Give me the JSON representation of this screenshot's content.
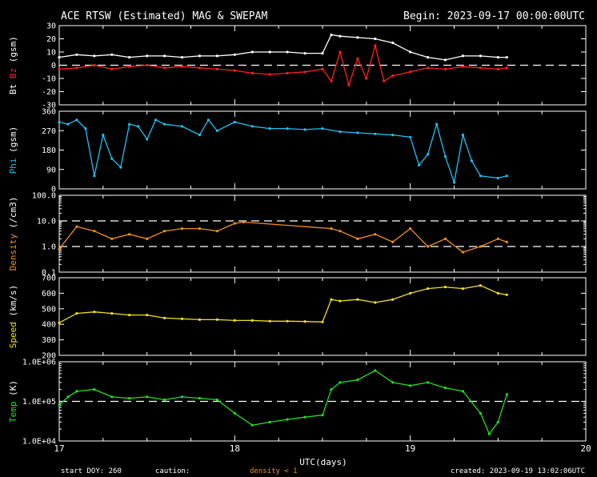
{
  "chart_data": {
    "type": "scatter",
    "title": "ACE RTSW (Estimated) MAG & SWEPAM",
    "begin": "Begin: 2023-09-17 00:00:00UTC",
    "xlabel": "UTC(days)",
    "xticks": [
      "17",
      "18",
      "19",
      "20"
    ],
    "xlim": [
      17,
      20
    ],
    "footer": {
      "start_doy": "start DOY: 260",
      "caution": "caution:",
      "density_note": "density < 1",
      "created": "created: 2023-09-19 13:02:06UTC"
    },
    "panels": [
      {
        "id": "mag",
        "ylabels": [
          {
            "text": "Bt",
            "color": "#ffffff"
          },
          {
            "text": "Bz",
            "color": "#ff2020"
          },
          {
            "text": "(gsm)",
            "color": "#ffffff"
          }
        ],
        "ylim": [
          -30,
          30
        ],
        "yticks": [
          "30",
          "20",
          "10",
          "0",
          "-10",
          "-20",
          "-30"
        ],
        "ref_lines": [
          0
        ],
        "series": [
          {
            "color": "#ffffff",
            "x": [
              17.0,
              17.1,
              17.2,
              17.3,
              17.4,
              17.5,
              17.6,
              17.7,
              17.8,
              17.9,
              18.0,
              18.1,
              18.2,
              18.3,
              18.4,
              18.5,
              18.55,
              18.6,
              18.7,
              18.8,
              18.9,
              19.0,
              19.1,
              19.2,
              19.3,
              19.4,
              19.5,
              19.55
            ],
            "y": [
              6,
              8,
              7,
              8,
              6,
              7,
              7,
              6,
              7,
              7,
              8,
              10,
              10,
              10,
              9,
              9,
              23,
              22,
              21,
              20,
              17,
              10,
              6,
              4,
              7,
              7,
              6,
              6
            ]
          },
          {
            "color": "#ff2020",
            "x": [
              17.0,
              17.1,
              17.2,
              17.3,
              17.4,
              17.5,
              17.6,
              17.7,
              17.8,
              17.9,
              18.0,
              18.1,
              18.2,
              18.3,
              18.4,
              18.5,
              18.55,
              18.6,
              18.65,
              18.7,
              18.75,
              18.8,
              18.85,
              18.9,
              19.0,
              19.1,
              19.2,
              19.3,
              19.4,
              19.5,
              19.55
            ],
            "y": [
              -3,
              -2,
              0,
              -3,
              -1,
              0,
              -2,
              -1,
              -2,
              -3,
              -4,
              -6,
              -7,
              -6,
              -5,
              -3,
              -12,
              10,
              -15,
              5,
              -10,
              15,
              -12,
              -8,
              -5,
              -2,
              -3,
              -1,
              -2,
              -3,
              -2
            ]
          }
        ]
      },
      {
        "id": "phi",
        "ylabels": [
          {
            "text": "Phi",
            "color": "#20c0f0"
          },
          {
            "text": "(gsm)",
            "color": "#ffffff"
          }
        ],
        "ylim": [
          0,
          360
        ],
        "yticks": [
          "360",
          "270",
          "180",
          "90",
          "0"
        ],
        "ref_lines": [],
        "series": [
          {
            "color": "#20c0f0",
            "x": [
              17.0,
              17.05,
              17.1,
              17.15,
              17.2,
              17.25,
              17.3,
              17.35,
              17.4,
              17.45,
              17.5,
              17.55,
              17.6,
              17.7,
              17.8,
              17.85,
              17.9,
              18.0,
              18.1,
              18.2,
              18.3,
              18.4,
              18.5,
              18.6,
              18.7,
              18.8,
              18.9,
              19.0,
              19.05,
              19.1,
              19.15,
              19.2,
              19.25,
              19.3,
              19.35,
              19.4,
              19.5,
              19.55
            ],
            "y": [
              310,
              300,
              320,
              280,
              60,
              250,
              140,
              100,
              300,
              290,
              230,
              320,
              300,
              290,
              250,
              320,
              270,
              310,
              290,
              280,
              280,
              275,
              280,
              265,
              260,
              255,
              250,
              240,
              110,
              160,
              300,
              150,
              30,
              250,
              130,
              60,
              50,
              60
            ]
          }
        ]
      },
      {
        "id": "density",
        "ylabels": [
          {
            "text": "Density",
            "color": "#f0901a"
          },
          {
            "text": "(/cm3)",
            "color": "#ffffff"
          }
        ],
        "ylim": [
          0.1,
          100
        ],
        "yscale": "log",
        "yticks": [
          "100.0",
          "10.0",
          "1.0",
          "0.1"
        ],
        "ref_lines": [
          10,
          1
        ],
        "series": [
          {
            "color": "#f0901a",
            "x": [
              17.0,
              17.1,
              17.2,
              17.3,
              17.4,
              17.5,
              17.6,
              17.7,
              17.8,
              17.9,
              18.0,
              18.05,
              18.55,
              18.6,
              18.7,
              18.8,
              18.9,
              19.0,
              19.1,
              19.2,
              19.3,
              19.4,
              19.5,
              19.55
            ],
            "y": [
              0.8,
              6,
              4,
              2,
              3,
              2,
              4,
              5,
              5,
              4,
              8,
              9,
              5,
              4,
              2,
              3,
              1.5,
              5,
              1,
              2,
              0.6,
              1,
              2,
              1.5
            ]
          }
        ]
      },
      {
        "id": "speed",
        "ylabels": [
          {
            "text": "Speed",
            "color": "#f0e020"
          },
          {
            "text": "(km/s)",
            "color": "#ffffff"
          }
        ],
        "ylim": [
          200,
          700
        ],
        "yticks": [
          "700",
          "600",
          "500",
          "400",
          "300",
          "200"
        ],
        "ref_lines": [],
        "series": [
          {
            "color": "#f0e020",
            "x": [
              17.0,
              17.1,
              17.2,
              17.3,
              17.4,
              17.5,
              17.6,
              17.7,
              17.8,
              17.9,
              18.0,
              18.1,
              18.2,
              18.3,
              18.4,
              18.5,
              18.55,
              18.6,
              18.7,
              18.8,
              18.9,
              19.0,
              19.1,
              19.2,
              19.3,
              19.4,
              19.5,
              19.55
            ],
            "y": [
              410,
              470,
              480,
              470,
              460,
              460,
              440,
              435,
              430,
              430,
              425,
              425,
              420,
              420,
              418,
              415,
              560,
              550,
              560,
              540,
              560,
              600,
              630,
              640,
              630,
              650,
              600,
              590
            ]
          }
        ]
      },
      {
        "id": "temp",
        "ylabels": [
          {
            "text": "Temp",
            "color": "#20e020"
          },
          {
            "text": "(K)",
            "color": "#ffffff"
          }
        ],
        "ylim": [
          10000,
          1000000
        ],
        "yscale": "log",
        "yticks": [
          "1.0E+06",
          "1.0E+05",
          "1.0E+04"
        ],
        "ref_lines": [
          100000
        ],
        "series": [
          {
            "color": "#20e020",
            "x": [
              17.0,
              17.05,
              17.1,
              17.2,
              17.3,
              17.4,
              17.5,
              17.6,
              17.7,
              17.8,
              17.9,
              18.0,
              18.1,
              18.2,
              18.3,
              18.4,
              18.5,
              18.55,
              18.6,
              18.7,
              18.8,
              18.9,
              19.0,
              19.1,
              19.2,
              19.3,
              19.4,
              19.45,
              19.5,
              19.55
            ],
            "y": [
              80000,
              130000,
              180000,
              200000,
              130000,
              120000,
              130000,
              110000,
              130000,
              120000,
              110000,
              50000,
              25000,
              30000,
              35000,
              40000,
              45000,
              200000,
              300000,
              350000,
              600000,
              300000,
              250000,
              300000,
              220000,
              180000,
              50000,
              15000,
              30000,
              150000
            ]
          }
        ]
      }
    ]
  }
}
